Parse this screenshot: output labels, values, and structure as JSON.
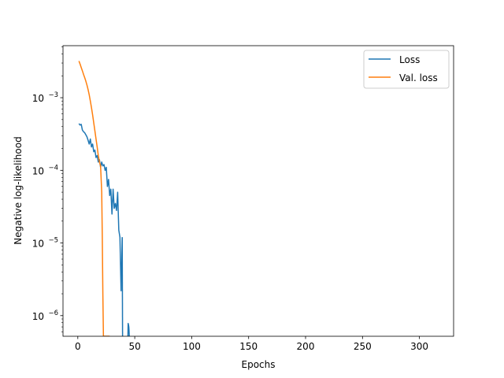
{
  "chart_data": {
    "type": "line",
    "title": "",
    "xlabel": "Epochs",
    "ylabel": "Negative log-likelihood",
    "yscale": "log",
    "xlim": [
      -13,
      330
    ],
    "ylim": [
      5.2e-07,
      0.0052
    ],
    "grid": false,
    "legend": "top-right",
    "x_ticks": [
      {
        "value": 0,
        "label": "0"
      },
      {
        "value": 50,
        "label": "50"
      },
      {
        "value": 100,
        "label": "100"
      },
      {
        "value": 150,
        "label": "150"
      },
      {
        "value": 200,
        "label": "200"
      },
      {
        "value": 250,
        "label": "250"
      },
      {
        "value": 300,
        "label": "300"
      }
    ],
    "y_ticks": [
      {
        "value": 1e-06,
        "base": "10",
        "exp": "−6"
      },
      {
        "value": 1e-05,
        "base": "10",
        "exp": "−5"
      },
      {
        "value": 0.0001,
        "base": "10",
        "exp": "−4"
      },
      {
        "value": 0.001,
        "base": "10",
        "exp": "−3"
      }
    ],
    "series": [
      {
        "name": "Loss",
        "color": "#1f77b4",
        "segments": [
          {
            "x": [
              1,
              2,
              3,
              4,
              5,
              6,
              7,
              8,
              9,
              10,
              11,
              12,
              13,
              14,
              15,
              16,
              17,
              18,
              19,
              20,
              21,
              22,
              23,
              24,
              25,
              26,
              27,
              28,
              29,
              30,
              31,
              32,
              33,
              34,
              35,
              36,
              37,
              38,
              39
            ],
            "y": [
              0.00044,
              0.00042,
              0.00043,
              0.00036,
              0.00034,
              0.00033,
              0.00031,
              0.00029,
              0.00026,
              0.00023,
              0.00027,
              0.00021,
              0.00023,
              0.00018,
              0.00019,
              0.00015,
              0.00016,
              0.00013,
              0.00014,
              0.00011,
              0.00013,
              0.000115,
              0.00012,
              0.0001,
              0.00011,
              6e-05,
              7.5e-05,
              4.5e-05,
              5.5e-05,
              2.5e-05,
              5.5e-05,
              3e-05,
              3.5e-05,
              2.8e-05,
              5e-05,
              1.5e-05,
              1.2e-05,
              2.2e-06,
              1.2e-05
            ]
          },
          {
            "x": [
              39,
              39.3
            ],
            "y": [
              1.2e-05,
              5.2e-07
            ]
          },
          {
            "x": [
              44,
              44.2,
              44.5,
              44.8,
              45,
              45.2
            ],
            "y": [
              5.2e-07,
              7.8e-07,
              7.5e-07,
              7e-07,
              6.2e-07,
              5.2e-07
            ]
          }
        ]
      },
      {
        "name": "Val. loss",
        "color": "#ff7f0e",
        "segments": [
          {
            "x": [
              1,
              2,
              3,
              4,
              5,
              6,
              7,
              8,
              9,
              10,
              11,
              12,
              13,
              14,
              15,
              16,
              17,
              18,
              19,
              20,
              21,
              21.5,
              22,
              22.5,
              23,
              24,
              25,
              26,
              27,
              28
            ],
            "y": [
              0.0032,
              0.0029,
              0.0026,
              0.00235,
              0.0021,
              0.0019,
              0.0017,
              0.0015,
              0.0013,
              0.0011,
              0.0009,
              0.00073,
              0.00058,
              0.00045,
              0.00035,
              0.00027,
              0.00021,
              0.00016,
              0.00013,
              0.000115,
              5e-05,
              1.2e-05,
              2e-06,
              5.2e-07,
              5.2e-07,
              5.2e-07,
              5.2e-07,
              5.2e-07,
              5.2e-07,
              5.2e-07
            ]
          }
        ]
      }
    ]
  }
}
